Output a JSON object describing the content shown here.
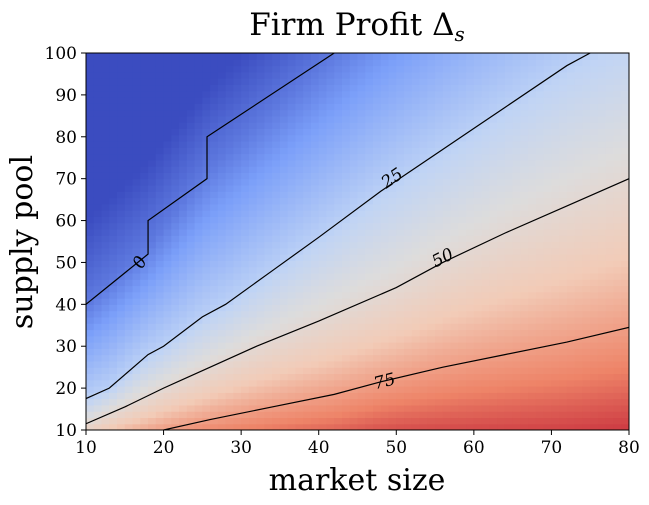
{
  "chart_data": {
    "type": "heatmap",
    "title": "Firm Profit Δ",
    "title_subscript": "s",
    "xlabel": "market size",
    "ylabel": "supply pool",
    "xlim": [
      10,
      80
    ],
    "ylim": [
      10,
      100
    ],
    "xticks": [
      10,
      20,
      30,
      40,
      50,
      60,
      70,
      80
    ],
    "yticks": [
      10,
      20,
      30,
      40,
      50,
      60,
      70,
      80,
      90,
      100
    ],
    "colormap": "coolwarm",
    "colormap_stops": [
      "#3b4cc0",
      "#7b9ff9",
      "#c0d4f5",
      "#dddcdc",
      "#f2cbb7",
      "#ee8468",
      "#b40426"
    ],
    "value_range": [
      -10,
      100
    ],
    "grid": false,
    "contours": [
      {
        "level": "0",
        "points": [
          [
            10,
            40
          ],
          [
            18,
            52
          ],
          [
            18,
            60
          ],
          [
            25.6,
            70
          ],
          [
            25.6,
            80
          ],
          [
            42,
            100
          ]
        ],
        "label_at": [
          17,
          50
        ]
      },
      {
        "level": "25",
        "points": [
          [
            10,
            17.5
          ],
          [
            13,
            20
          ],
          [
            18,
            28
          ],
          [
            20,
            30
          ],
          [
            25,
            37
          ],
          [
            28,
            40
          ],
          [
            34,
            48
          ],
          [
            40,
            56
          ],
          [
            48,
            67
          ],
          [
            56,
            77
          ],
          [
            64,
            87
          ],
          [
            72,
            97
          ],
          [
            75,
            100
          ]
        ],
        "label_at": [
          49.5,
          70
        ]
      },
      {
        "level": "50",
        "points": [
          [
            10,
            11.5
          ],
          [
            15,
            15.5
          ],
          [
            20,
            20
          ],
          [
            26,
            25
          ],
          [
            32,
            30
          ],
          [
            40,
            36
          ],
          [
            50,
            44
          ],
          [
            56,
            50
          ],
          [
            64,
            57
          ],
          [
            72,
            63.5
          ],
          [
            80,
            70
          ]
        ],
        "label_at": [
          56,
          51
        ]
      },
      {
        "level": "75",
        "points": [
          [
            20,
            10
          ],
          [
            26,
            12.5
          ],
          [
            34,
            15.5
          ],
          [
            42,
            18.5
          ],
          [
            48,
            21.5
          ],
          [
            56,
            25
          ],
          [
            64,
            28
          ],
          [
            72,
            31
          ],
          [
            80,
            34.5
          ]
        ],
        "label_at": [
          48.5,
          21.5
        ]
      }
    ]
  }
}
